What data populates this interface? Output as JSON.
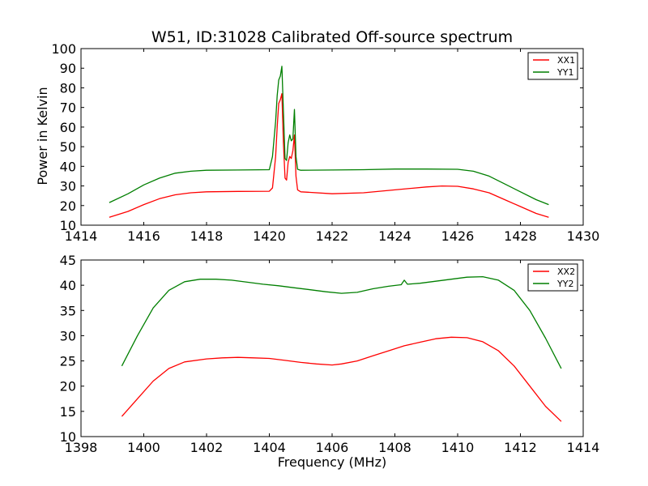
{
  "chart_data": [
    {
      "type": "line",
      "title": "W51, ID:31028 Calibrated Off-source spectrum",
      "xlabel": "",
      "ylabel": "Power in Kelvin",
      "xlim": [
        1414,
        1430
      ],
      "ylim": [
        10,
        100
      ],
      "xticks": [
        1414,
        1416,
        1418,
        1420,
        1422,
        1424,
        1426,
        1428,
        1430
      ],
      "yticks": [
        10,
        20,
        30,
        40,
        50,
        60,
        70,
        80,
        90,
        100
      ],
      "legend_position": "top-right",
      "series": [
        {
          "name": "XX1",
          "color": "#ff0000",
          "x": [
            1414.9,
            1415.5,
            1416.0,
            1416.5,
            1417.0,
            1417.5,
            1418.0,
            1419.0,
            1420.0,
            1420.1,
            1420.2,
            1420.25,
            1420.3,
            1420.35,
            1420.4,
            1420.45,
            1420.5,
            1420.55,
            1420.6,
            1420.65,
            1420.7,
            1420.75,
            1420.8,
            1420.85,
            1420.9,
            1421.0,
            1422.0,
            1423.0,
            1424.0,
            1425.0,
            1425.5,
            1426.0,
            1426.5,
            1427.0,
            1427.5,
            1428.0,
            1428.5,
            1428.9
          ],
          "y": [
            14,
            17,
            20.5,
            23.5,
            25.5,
            26.5,
            27,
            27.2,
            27.3,
            29,
            45,
            60,
            72,
            74,
            77,
            52,
            34,
            33,
            42,
            45,
            44,
            48,
            56,
            35,
            28,
            27,
            26,
            26.5,
            28,
            29.5,
            30,
            29.8,
            28.5,
            26.5,
            23,
            19.5,
            16,
            14
          ]
        },
        {
          "name": "YY1",
          "color": "#007f00",
          "x": [
            1414.9,
            1415.5,
            1416.0,
            1416.5,
            1417.0,
            1417.5,
            1418.0,
            1419.0,
            1420.0,
            1420.1,
            1420.2,
            1420.25,
            1420.3,
            1420.35,
            1420.4,
            1420.45,
            1420.5,
            1420.55,
            1420.6,
            1420.65,
            1420.7,
            1420.75,
            1420.8,
            1420.85,
            1420.9,
            1421.0,
            1422.0,
            1423.0,
            1424.0,
            1425.0,
            1426.0,
            1426.5,
            1427.0,
            1427.5,
            1428.0,
            1428.5,
            1428.9
          ],
          "y": [
            21.5,
            26,
            30.5,
            34,
            36.5,
            37.5,
            38,
            38.1,
            38.3,
            45,
            63,
            76,
            84,
            86,
            91,
            68,
            44,
            43,
            52,
            56,
            53,
            54,
            69,
            45,
            38.5,
            38,
            38.1,
            38.3,
            38.6,
            38.6,
            38.5,
            37.5,
            35,
            31,
            27,
            23,
            20.5
          ]
        }
      ]
    },
    {
      "type": "line",
      "title": "",
      "xlabel": "Frequency (MHz)",
      "ylabel": "",
      "xlim": [
        1398,
        1414
      ],
      "ylim": [
        10,
        45
      ],
      "xticks": [
        1398,
        1400,
        1402,
        1404,
        1406,
        1408,
        1410,
        1412,
        1414
      ],
      "yticks": [
        10,
        15,
        20,
        25,
        30,
        35,
        40,
        45
      ],
      "legend_position": "top-right",
      "series": [
        {
          "name": "XX2",
          "color": "#ff0000",
          "x": [
            1399.3,
            1399.8,
            1400.3,
            1400.8,
            1401.3,
            1402.0,
            1402.5,
            1403.0,
            1403.5,
            1404.0,
            1404.5,
            1405.0,
            1405.5,
            1406.0,
            1406.3,
            1406.8,
            1407.3,
            1407.8,
            1408.3,
            1408.8,
            1409.3,
            1409.8,
            1410.3,
            1410.8,
            1411.3,
            1411.8,
            1412.3,
            1412.8,
            1413.3
          ],
          "y": [
            14,
            17.5,
            21,
            23.5,
            24.8,
            25.4,
            25.6,
            25.7,
            25.6,
            25.5,
            25.1,
            24.7,
            24.4,
            24.2,
            24.4,
            25,
            26,
            27,
            28,
            28.7,
            29.4,
            29.7,
            29.6,
            28.8,
            27,
            24,
            20,
            16,
            13
          ]
        },
        {
          "name": "YY2",
          "color": "#007f00",
          "x": [
            1399.3,
            1399.8,
            1400.3,
            1400.8,
            1401.3,
            1401.8,
            1402.3,
            1402.8,
            1403.3,
            1403.8,
            1404.3,
            1404.8,
            1405.3,
            1405.8,
            1406.3,
            1406.8,
            1407.3,
            1407.8,
            1408.2,
            1408.3,
            1408.4,
            1408.8,
            1409.3,
            1409.8,
            1410.3,
            1410.8,
            1411.3,
            1411.8,
            1412.3,
            1412.8,
            1413.3
          ],
          "y": [
            24,
            30,
            35.5,
            39,
            40.7,
            41.2,
            41.2,
            41,
            40.6,
            40.2,
            39.9,
            39.5,
            39.1,
            38.7,
            38.4,
            38.6,
            39.3,
            39.8,
            40.1,
            41,
            40.2,
            40.4,
            40.8,
            41.2,
            41.6,
            41.7,
            41,
            39,
            35,
            29.5,
            23.5
          ]
        }
      ]
    }
  ]
}
